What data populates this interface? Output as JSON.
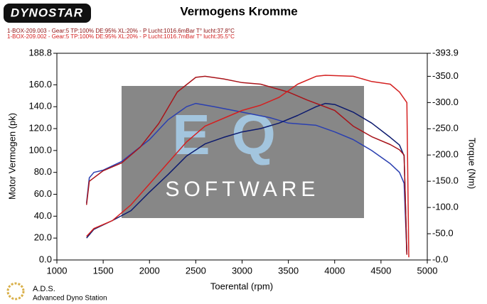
{
  "brand": "DYNOSTAR",
  "footer": {
    "title": "A.D.S.",
    "subtitle": "Advanced Dyno Station"
  },
  "watermark": {
    "logo": "EQ",
    "text": "SOFTWARE"
  },
  "chart_data": {
    "type": "line",
    "title": "Vermogens Kromme",
    "runs": [
      {
        "text": "1-BOX-209.003 - Gear:5  TP:100%  DE:95%  XL:20%   - P Lucht:1016.6mBar T° lucht:37.8°C",
        "color": "#8b1010"
      },
      {
        "text": "1-BOX-209.002 - Gear:5  TP:100%  DE:95%  XL:20%   - P Lucht:1016.7mBar T° lucht:35.5°C",
        "color": "#d42020"
      }
    ],
    "x_label": "Toerental (rpm)",
    "y_label": "Motor Vermogen (pk)",
    "y2_label": "Torque (Nm)",
    "xlim": [
      1000,
      5000
    ],
    "xticks": [
      1000,
      1500,
      2000,
      2500,
      3000,
      3500,
      4000,
      4500,
      5000
    ],
    "ylim": [
      0,
      188.8
    ],
    "yticks": [
      {
        "value": 0,
        "label": "0.0"
      },
      {
        "value": 20,
        "label": "20.0"
      },
      {
        "value": 40,
        "label": "40.0"
      },
      {
        "value": 60,
        "label": "60.0"
      },
      {
        "value": 80,
        "label": "80.0"
      },
      {
        "value": 100,
        "label": "100.0"
      },
      {
        "value": 120,
        "label": "120.0"
      },
      {
        "value": 140,
        "label": "140.0"
      },
      {
        "value": 160,
        "label": "160.0"
      },
      {
        "value": 188.8,
        "label": "188.8"
      }
    ],
    "y2lim": [
      0,
      -393.9
    ],
    "y2ticks": [
      {
        "value": 0,
        "label": "-0.0"
      },
      {
        "value": -50,
        "label": "-50.0"
      },
      {
        "value": -100,
        "label": "-100.0"
      },
      {
        "value": -150,
        "label": "-150.0"
      },
      {
        "value": -200,
        "label": "-200.0"
      },
      {
        "value": -250,
        "label": "-250.0"
      },
      {
        "value": -300,
        "label": "-300.0"
      },
      {
        "value": -350,
        "label": "-350.0"
      },
      {
        "value": -393.9,
        "label": "-393.9"
      }
    ],
    "series": [
      {
        "color": "#2a3fb0",
        "axis": "y",
        "x": [
          1320,
          1350,
          1400,
          1500,
          1700,
          2000,
          2200,
          2400,
          2500,
          2700,
          3000,
          3300,
          3500,
          3800,
          4000,
          4200,
          4400,
          4600,
          4700,
          4750,
          4780
        ],
        "values": [
          52,
          75,
          80,
          82,
          90,
          110,
          128,
          140,
          143,
          140,
          135,
          130,
          125,
          123,
          117,
          110,
          100,
          88,
          80,
          70,
          5
        ]
      },
      {
        "color": "#0c1a6e",
        "axis": "y",
        "x": [
          1320,
          1400,
          1600,
          1800,
          2000,
          2200,
          2400,
          2600,
          2800,
          3000,
          3200,
          3400,
          3600,
          3800,
          3900,
          4000,
          4200,
          4400,
          4600,
          4700,
          4750,
          4780
        ],
        "values": [
          20,
          28,
          36,
          45,
          62,
          78,
          95,
          106,
          112,
          117,
          120,
          125,
          132,
          140,
          143,
          142,
          135,
          125,
          112,
          105,
          95,
          5
        ]
      },
      {
        "color": "#a8141a",
        "axis": "y2",
        "x": [
          1320,
          1350,
          1500,
          1700,
          1900,
          2100,
          2300,
          2500,
          2600,
          2800,
          3000,
          3200,
          3500,
          3700,
          4000,
          4200,
          4400,
          4600,
          4700,
          4750,
          4780
        ],
        "values": [
          -105,
          -150,
          -170,
          -185,
          -215,
          -260,
          -320,
          -348,
          -350,
          -345,
          -338,
          -335,
          -320,
          -305,
          -285,
          -255,
          -235,
          -220,
          -210,
          -200,
          -10
        ]
      },
      {
        "color": "#d42020",
        "axis": "y2",
        "x": [
          1320,
          1400,
          1600,
          1800,
          2000,
          2200,
          2400,
          2600,
          2800,
          3000,
          3200,
          3400,
          3600,
          3800,
          3900,
          4200,
          4400,
          4600,
          4700,
          4780,
          4800
        ],
        "values": [
          -45,
          -60,
          -75,
          -105,
          -145,
          -185,
          -225,
          -255,
          -270,
          -285,
          -295,
          -310,
          -335,
          -350,
          -352,
          -350,
          -340,
          -335,
          -320,
          -300,
          -5
        ]
      }
    ]
  }
}
